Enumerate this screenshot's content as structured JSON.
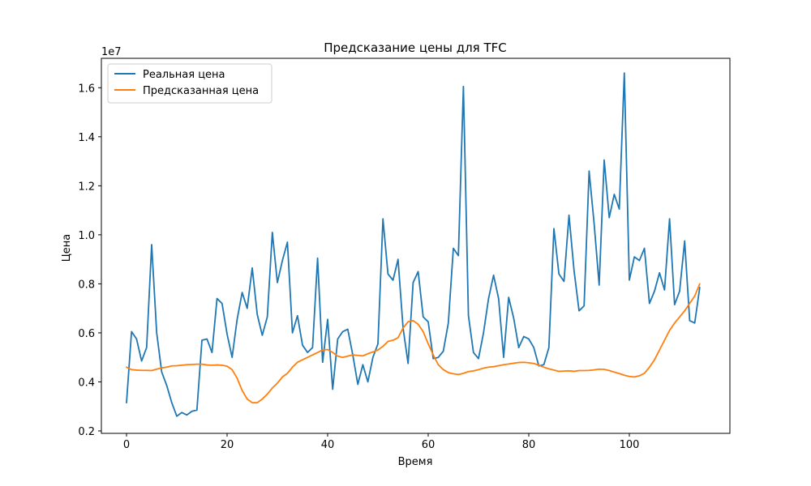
{
  "chart_data": {
    "type": "line",
    "title": "Предсказание цены для TFC",
    "xlabel": "Время",
    "ylabel": "Цена",
    "y_offset_label": "1e7",
    "xlim": [
      -5,
      120
    ],
    "ylim": [
      1900000,
      17200000
    ],
    "x_ticks": [
      0,
      20,
      40,
      60,
      80,
      100
    ],
    "x_tick_labels": [
      "0",
      "20",
      "40",
      "60",
      "80",
      "100"
    ],
    "y_ticks": [
      2000000,
      4000000,
      6000000,
      8000000,
      10000000,
      12000000,
      14000000,
      16000000
    ],
    "y_tick_labels": [
      "0.2",
      "0.4",
      "0.6",
      "0.8",
      "1.0",
      "1.2",
      "1.4",
      "1.6"
    ],
    "grid": false,
    "legend_position": "top-left",
    "series": [
      {
        "name": "Реальная цена",
        "color": "#1f77b4",
        "values": [
          3150000,
          6050000,
          5750000,
          4850000,
          5400000,
          9600000,
          6000000,
          4400000,
          3850000,
          3150000,
          2600000,
          2750000,
          2650000,
          2800000,
          2850000,
          5700000,
          5750000,
          5200000,
          7400000,
          7200000,
          5950000,
          5000000,
          6550000,
          7650000,
          7000000,
          8650000,
          6750000,
          5900000,
          6650000,
          10100000,
          8050000,
          8950000,
          9700000,
          6000000,
          6700000,
          5500000,
          5200000,
          5400000,
          9050000,
          4800000,
          6550000,
          3700000,
          5750000,
          6050000,
          6150000,
          5100000,
          3900000,
          4700000,
          4000000,
          5000000,
          5550000,
          10650000,
          8400000,
          8150000,
          9000000,
          6200000,
          4750000,
          8050000,
          8500000,
          6650000,
          6450000,
          4950000,
          5000000,
          5250000,
          6400000,
          9450000,
          9150000,
          16050000,
          6700000,
          5200000,
          4950000,
          6000000,
          7400000,
          8350000,
          7400000,
          5000000,
          7450000,
          6600000,
          5400000,
          5850000,
          5750000,
          5400000,
          4650000,
          4700000,
          5400000,
          10250000,
          8400000,
          8100000,
          10800000,
          8550000,
          6900000,
          7100000,
          12600000,
          10450000,
          7950000,
          13050000,
          10700000,
          11650000,
          11050000,
          16600000,
          8150000,
          9100000,
          8950000,
          9450000,
          7200000,
          7700000,
          8450000,
          7750000,
          10650000,
          7150000,
          7700000,
          9750000,
          6500000,
          6400000,
          7850000
        ]
      },
      {
        "name": "Предсказанная цена",
        "color": "#ff7f0e",
        "values": [
          4600000,
          4500000,
          4480000,
          4470000,
          4470000,
          4460000,
          4520000,
          4570000,
          4600000,
          4650000,
          4660000,
          4680000,
          4700000,
          4710000,
          4720000,
          4720000,
          4690000,
          4680000,
          4690000,
          4680000,
          4640000,
          4500000,
          4150000,
          3650000,
          3300000,
          3150000,
          3150000,
          3300000,
          3500000,
          3750000,
          3950000,
          4200000,
          4350000,
          4600000,
          4800000,
          4900000,
          5000000,
          5100000,
          5200000,
          5300000,
          5320000,
          5200000,
          5050000,
          5000000,
          5050000,
          5100000,
          5080000,
          5060000,
          5150000,
          5220000,
          5300000,
          5450000,
          5650000,
          5700000,
          5800000,
          6200000,
          6450000,
          6500000,
          6350000,
          6050000,
          5550000,
          5100000,
          4700000,
          4500000,
          4380000,
          4330000,
          4300000,
          4350000,
          4420000,
          4450000,
          4500000,
          4560000,
          4600000,
          4620000,
          4660000,
          4700000,
          4730000,
          4760000,
          4790000,
          4800000,
          4780000,
          4750000,
          4680000,
          4600000,
          4530000,
          4480000,
          4430000,
          4440000,
          4450000,
          4430000,
          4460000,
          4460000,
          4470000,
          4490000,
          4520000,
          4510000,
          4460000,
          4400000,
          4340000,
          4270000,
          4220000,
          4200000,
          4250000,
          4350000,
          4600000,
          4900000,
          5300000,
          5700000,
          6100000,
          6400000,
          6650000,
          6900000,
          7200000,
          7500000,
          8000000
        ]
      }
    ]
  }
}
